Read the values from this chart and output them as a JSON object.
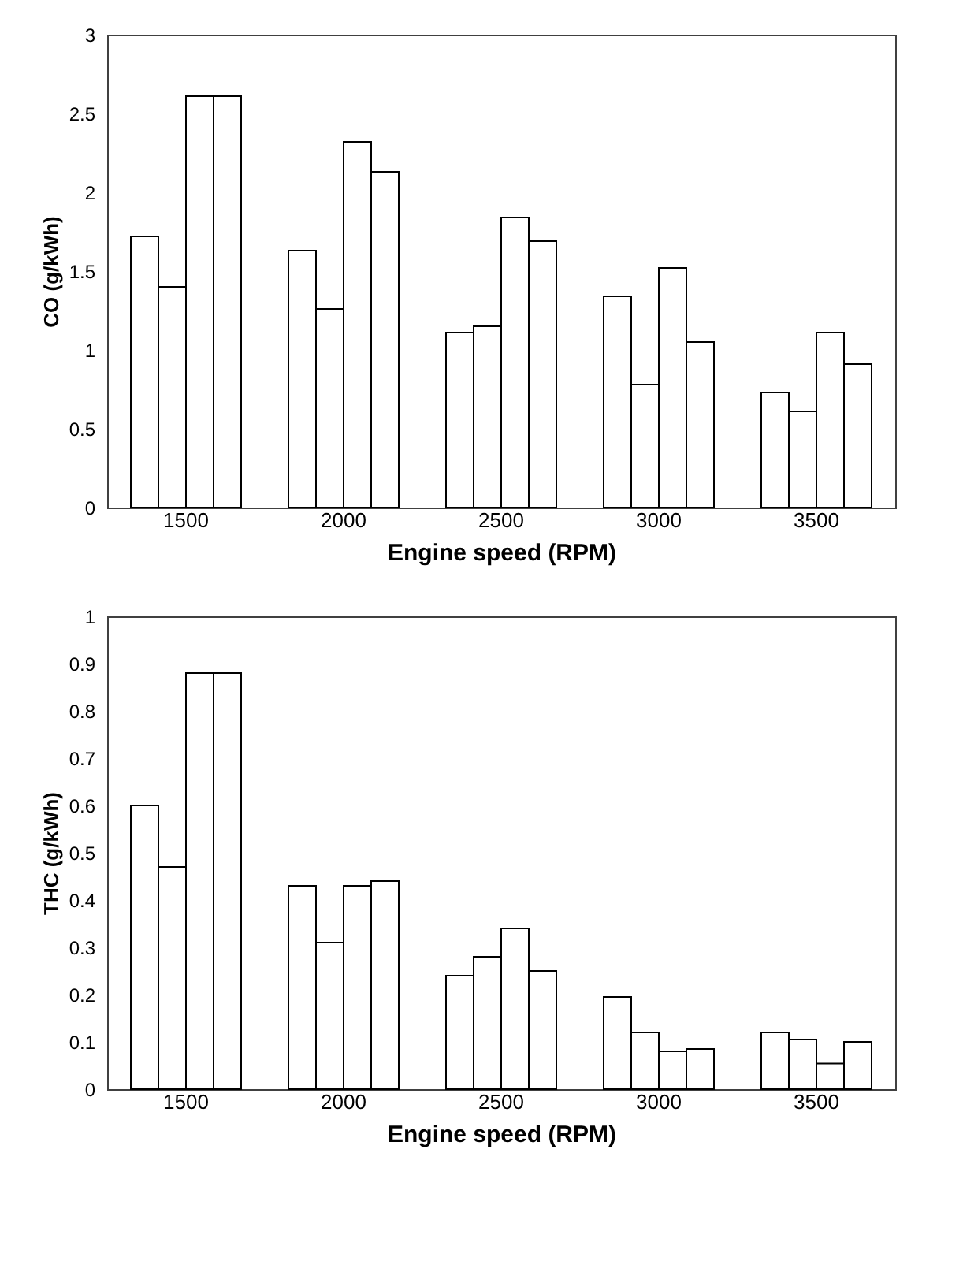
{
  "chart_data": [
    {
      "type": "bar",
      "xlabel": "Engine speed (RPM)",
      "ylabel": "CO (g/kWh)",
      "categories": [
        "1500",
        "2000",
        "2500",
        "3000",
        "3500"
      ],
      "ylim": [
        0,
        3
      ],
      "yticks": [
        0,
        0.5,
        1,
        1.5,
        2,
        2.5,
        3
      ],
      "grid": false,
      "legend": false,
      "series": [
        {
          "color": "#ffffff",
          "values": [
            1.72,
            1.63,
            1.11,
            1.34,
            0.73
          ]
        },
        {
          "color": "#ffffff",
          "values": [
            1.4,
            1.26,
            1.15,
            0.78,
            0.61
          ]
        },
        {
          "color": "#ffffff",
          "values": [
            2.61,
            2.32,
            1.84,
            1.52,
            1.11
          ]
        },
        {
          "color": "#ffffff",
          "values": [
            2.61,
            2.13,
            1.69,
            1.05,
            0.91
          ]
        }
      ]
    },
    {
      "type": "bar",
      "xlabel": "Engine speed (RPM)",
      "ylabel": "THC (g/kWh)",
      "categories": [
        "1500",
        "2000",
        "2500",
        "3000",
        "3500"
      ],
      "ylim": [
        0,
        1
      ],
      "yticks": [
        0,
        0.1,
        0.2,
        0.3,
        0.4,
        0.5,
        0.6,
        0.7,
        0.8,
        0.9,
        1
      ],
      "grid": false,
      "legend": false,
      "series": [
        {
          "color": "#ffffff",
          "values": [
            0.6,
            0.43,
            0.24,
            0.195,
            0.12
          ]
        },
        {
          "color": "#ffffff",
          "values": [
            0.47,
            0.31,
            0.28,
            0.12,
            0.105
          ]
        },
        {
          "color": "#ffffff",
          "values": [
            0.88,
            0.43,
            0.34,
            0.08,
            0.054
          ]
        },
        {
          "color": "#ffffff",
          "values": [
            0.88,
            0.44,
            0.25,
            0.085,
            0.1
          ]
        }
      ]
    }
  ]
}
